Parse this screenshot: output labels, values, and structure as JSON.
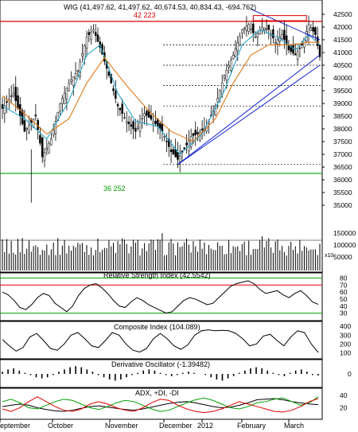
{
  "chart_data": [
    {
      "type": "candlestick",
      "title": "WIG (41,497.62, 41,497.62, 40,674.53, 40,834.43, -694.762)",
      "x_labels": [
        "September",
        "October",
        "November",
        "December",
        "2012",
        "February",
        "March"
      ],
      "y_ticks": [
        "42500",
        "42000",
        "41500",
        "41000",
        "40500",
        "40000",
        "39500",
        "39000",
        "38500",
        "38000",
        "37500",
        "37000",
        "36500",
        "36000",
        "35500",
        "35000"
      ],
      "ylim": [
        34500,
        43000
      ],
      "annotations": [
        "42 223",
        "36 252"
      ],
      "horizontal_levels": [
        42223,
        36252,
        41300,
        40500,
        39700,
        38900,
        36600
      ],
      "close_path": [
        {
          "x": 0,
          "close": 38800
        },
        {
          "x": 5,
          "close": 39400
        },
        {
          "x": 10,
          "close": 37900
        },
        {
          "x": 15,
          "close": 38500
        },
        {
          "x": 18,
          "close": 36900
        },
        {
          "x": 22,
          "close": 37600
        },
        {
          "x": 26,
          "close": 39000
        },
        {
          "x": 30,
          "close": 39800
        },
        {
          "x": 34,
          "close": 40300
        },
        {
          "x": 38,
          "close": 41600
        },
        {
          "x": 41,
          "close": 41900
        },
        {
          "x": 44,
          "close": 41200
        },
        {
          "x": 48,
          "close": 40100
        },
        {
          "x": 52,
          "close": 38900
        },
        {
          "x": 56,
          "close": 38300
        },
        {
          "x": 60,
          "close": 37900
        },
        {
          "x": 64,
          "close": 38600
        },
        {
          "x": 68,
          "close": 38300
        },
        {
          "x": 72,
          "close": 37900
        },
        {
          "x": 76,
          "close": 37100
        },
        {
          "x": 79,
          "close": 36800
        },
        {
          "x": 82,
          "close": 37200
        },
        {
          "x": 85,
          "close": 37700
        },
        {
          "x": 88,
          "close": 37800
        },
        {
          "x": 92,
          "close": 38100
        },
        {
          "x": 96,
          "close": 38900
        },
        {
          "x": 100,
          "close": 40100
        },
        {
          "x": 104,
          "close": 40900
        },
        {
          "x": 108,
          "close": 41900
        },
        {
          "x": 111,
          "close": 42100
        },
        {
          "x": 114,
          "close": 41600
        },
        {
          "x": 117,
          "close": 42000
        },
        {
          "x": 120,
          "close": 41900
        },
        {
          "x": 123,
          "close": 41400
        },
        {
          "x": 126,
          "close": 41700
        },
        {
          "x": 129,
          "close": 41100
        },
        {
          "x": 132,
          "close": 40900
        },
        {
          "x": 135,
          "close": 41300
        },
        {
          "x": 138,
          "close": 42100
        },
        {
          "x": 141,
          "close": 41700
        },
        {
          "x": 143,
          "close": 40834
        }
      ],
      "moving_average_fast": [
        {
          "x": 0,
          "v": 38900
        },
        {
          "x": 10,
          "v": 38400
        },
        {
          "x": 20,
          "v": 37600
        },
        {
          "x": 30,
          "v": 39100
        },
        {
          "x": 38,
          "v": 40900
        },
        {
          "x": 44,
          "v": 41300
        },
        {
          "x": 52,
          "v": 39400
        },
        {
          "x": 60,
          "v": 38300
        },
        {
          "x": 70,
          "v": 38100
        },
        {
          "x": 80,
          "v": 37000
        },
        {
          "x": 90,
          "v": 37800
        },
        {
          "x": 100,
          "v": 39500
        },
        {
          "x": 108,
          "v": 41300
        },
        {
          "x": 116,
          "v": 41900
        },
        {
          "x": 124,
          "v": 41600
        },
        {
          "x": 132,
          "v": 41100
        },
        {
          "x": 138,
          "v": 41700
        },
        {
          "x": 143,
          "v": 41300
        }
      ],
      "moving_average_slow": [
        {
          "x": 0,
          "v": 39300
        },
        {
          "x": 10,
          "v": 38600
        },
        {
          "x": 20,
          "v": 37800
        },
        {
          "x": 30,
          "v": 38400
        },
        {
          "x": 38,
          "v": 39800
        },
        {
          "x": 46,
          "v": 40800
        },
        {
          "x": 56,
          "v": 39700
        },
        {
          "x": 66,
          "v": 38700
        },
        {
          "x": 76,
          "v": 37900
        },
        {
          "x": 86,
          "v": 37500
        },
        {
          "x": 96,
          "v": 38400
        },
        {
          "x": 104,
          "v": 39800
        },
        {
          "x": 112,
          "v": 40900
        },
        {
          "x": 120,
          "v": 41300
        },
        {
          "x": 130,
          "v": 41300
        },
        {
          "x": 138,
          "v": 41400
        },
        {
          "x": 143,
          "v": 41400
        }
      ],
      "trendlines": [
        {
          "from": {
            "x": 79,
            "v": 36600
          },
          "to": {
            "x": 143,
            "v": 40900
          }
        },
        {
          "from": {
            "x": 79,
            "v": 36600
          },
          "to": {
            "x": 143,
            "v": 40500
          }
        },
        {
          "from": {
            "x": 112,
            "v": 42700
          },
          "to": {
            "x": 143,
            "v": 41500
          }
        }
      ]
    },
    {
      "type": "bar",
      "title": "Volume",
      "y_ticks": [
        "150000",
        "100000",
        "50000"
      ],
      "unit_label": "x10",
      "ylim": [
        0,
        180000
      ]
    },
    {
      "type": "line",
      "title": "Relative Strength Index (42.5542)",
      "y_ticks": [
        "80",
        "70",
        "60",
        "50",
        "40",
        "30"
      ],
      "ylim": [
        25,
        85
      ],
      "reference_levels": [
        70,
        30
      ],
      "values": [
        60,
        56,
        48,
        38,
        35,
        42,
        52,
        58,
        55,
        44,
        38,
        32,
        40,
        55,
        65,
        70,
        72,
        66,
        58,
        48,
        40,
        38,
        46,
        52,
        48,
        42,
        38,
        34,
        30,
        32,
        40,
        48,
        52,
        50,
        46,
        42,
        44,
        52,
        60,
        68,
        72,
        74,
        76,
        72,
        64,
        58,
        60,
        62,
        56,
        52,
        58,
        62,
        55,
        46,
        42.5
      ]
    },
    {
      "type": "line",
      "title": "Composite Index (104.089)",
      "y_ticks": [
        "400",
        "300",
        "200",
        "100"
      ],
      "ylim": [
        60,
        420
      ],
      "values": [
        250,
        180,
        120,
        160,
        280,
        320,
        240,
        150,
        130,
        200,
        300,
        330,
        260,
        180,
        160,
        240,
        330,
        300,
        200,
        130,
        110,
        150,
        260,
        320,
        260,
        180,
        140,
        190,
        300,
        350,
        360,
        350,
        355,
        350,
        320,
        260,
        180,
        200,
        290,
        310,
        240,
        180,
        280,
        350,
        330,
        200,
        104
      ]
    },
    {
      "type": "bar",
      "title": "Derivative Oscillator (-1.39482)",
      "y_ticks": [
        "0"
      ],
      "ylim": [
        -12,
        12
      ],
      "values": [
        2,
        4,
        5,
        3,
        1,
        -1,
        -3,
        -4,
        -3,
        -1,
        2,
        4,
        6,
        7,
        6,
        4,
        2,
        -1,
        -3,
        -5,
        -6,
        -5,
        -3,
        -1,
        1,
        3,
        4,
        3,
        1,
        -1,
        -2,
        -1,
        1,
        2,
        1,
        0,
        -1,
        -3,
        -5,
        -6,
        -4,
        -2,
        1,
        3,
        5,
        6,
        5,
        3,
        1,
        -1,
        -2,
        1,
        3,
        4,
        2,
        -1,
        -1.4
      ]
    },
    {
      "type": "line",
      "title": "ADX, +DI, -DI",
      "y_ticks": [
        "40",
        "20"
      ],
      "ylim": [
        5,
        48
      ],
      "series": [
        {
          "name": "ADX",
          "color": "#000000",
          "values": [
            22,
            24,
            26,
            24,
            20,
            17,
            15,
            14,
            16,
            19,
            22,
            23,
            21,
            19,
            17,
            16,
            18,
            21,
            24,
            27,
            29,
            30,
            28,
            25,
            22,
            20,
            21,
            24,
            28,
            33,
            34,
            35,
            33,
            30,
            28,
            26,
            25
          ]
        },
        {
          "name": "+DI",
          "color": "#00a000",
          "values": [
            30,
            34,
            28,
            20,
            18,
            24,
            30,
            34,
            32,
            26,
            20,
            17,
            22,
            28,
            32,
            30,
            24,
            18,
            14,
            16,
            22,
            28,
            33,
            36,
            32,
            26,
            20,
            18,
            22,
            28,
            30,
            34,
            36,
            30,
            24,
            28,
            38
          ]
        },
        {
          "name": "-DI",
          "color": "#e00000",
          "values": [
            18,
            14,
            20,
            30,
            38,
            30,
            22,
            16,
            14,
            18,
            26,
            30,
            26,
            20,
            16,
            14,
            20,
            28,
            34,
            32,
            24,
            18,
            14,
            12,
            14,
            18,
            24,
            30,
            26,
            22,
            18,
            14,
            13,
            16,
            22,
            30,
            35
          ]
        }
      ]
    }
  ]
}
